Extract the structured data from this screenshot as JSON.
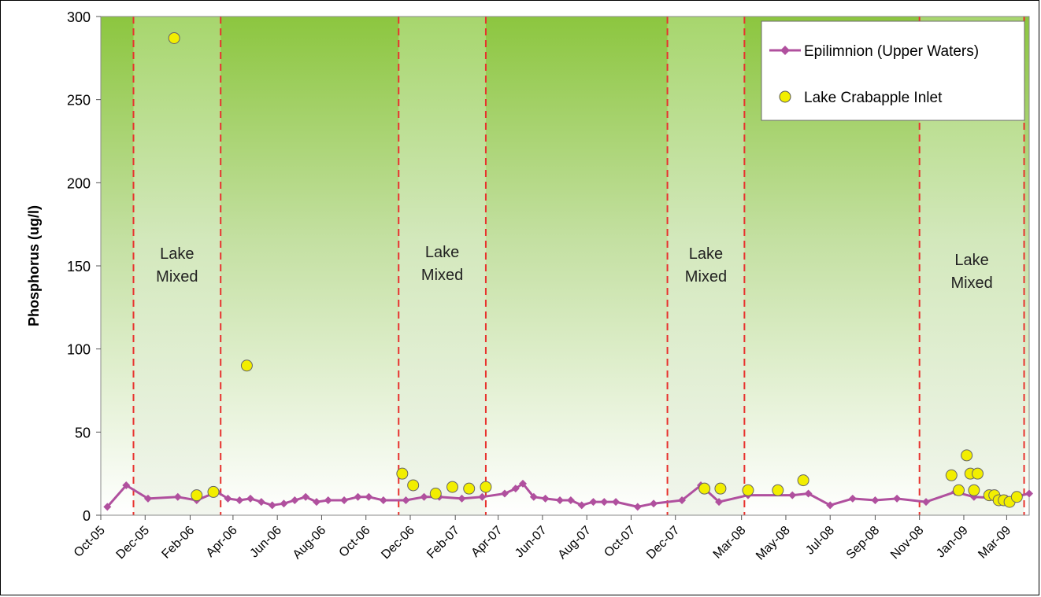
{
  "chart_data": {
    "type": "line",
    "title": "",
    "xlabel": "",
    "ylabel": "Phosphorus (ug/l)",
    "ylim": [
      0,
      300
    ],
    "yticks": [
      0,
      50,
      100,
      150,
      200,
      250,
      300
    ],
    "xlim": [
      "2005-10-01",
      "2009-04-01"
    ],
    "xticks": [
      {
        "date": "2005-10-01",
        "label": "Oct-05"
      },
      {
        "date": "2005-12-01",
        "label": "Dec-05"
      },
      {
        "date": "2006-02-01",
        "label": "Feb-06"
      },
      {
        "date": "2006-04-01",
        "label": "Apr-06"
      },
      {
        "date": "2006-06-01",
        "label": "Jun-06"
      },
      {
        "date": "2006-08-01",
        "label": "Aug-06"
      },
      {
        "date": "2006-10-01",
        "label": "Oct-06"
      },
      {
        "date": "2006-12-01",
        "label": "Dec-06"
      },
      {
        "date": "2007-02-01",
        "label": "Feb-07"
      },
      {
        "date": "2007-04-01",
        "label": "Apr-07"
      },
      {
        "date": "2007-06-01",
        "label": "Jun-07"
      },
      {
        "date": "2007-08-01",
        "label": "Aug-07"
      },
      {
        "date": "2007-10-01",
        "label": "Oct-07"
      },
      {
        "date": "2007-12-01",
        "label": "Dec-07"
      },
      {
        "date": "2008-03-01",
        "label": "Mar-08"
      },
      {
        "date": "2008-05-01",
        "label": "May-08"
      },
      {
        "date": "2008-07-01",
        "label": "Jul-08"
      },
      {
        "date": "2008-09-01",
        "label": "Sep-08"
      },
      {
        "date": "2008-11-01",
        "label": "Nov-08"
      },
      {
        "date": "2009-01-01",
        "label": "Jan-09"
      },
      {
        "date": "2009-03-01",
        "label": "Mar-09"
      }
    ],
    "grid": false,
    "legend_position": "top-right",
    "colors": {
      "epilimnion_line": "#b0509e",
      "inlet_marker_fill": "#f2ee00",
      "mixed_line": "#e8322e",
      "background_green": "#8cc63f"
    },
    "mixed_periods": [
      {
        "start": "2005-11-15",
        "end": "2006-03-15",
        "label": [
          "Lake",
          "Mixed"
        ]
      },
      {
        "start": "2006-11-15",
        "end": "2007-03-15",
        "label": [
          "Lake",
          "Mixed"
        ]
      },
      {
        "start": "2007-11-20",
        "end": "2008-03-05",
        "label": [
          "Lake",
          "Mixed"
        ]
      },
      {
        "start": "2008-11-01",
        "end": "2009-03-25",
        "label": [
          "Lake",
          "Mixed"
        ]
      }
    ],
    "series": [
      {
        "name": "Epilimnion (Upper Waters)",
        "style": "line-diamond",
        "points": [
          [
            "2005-10-10",
            5
          ],
          [
            "2005-11-05",
            18
          ],
          [
            "2005-12-05",
            10
          ],
          [
            "2006-01-15",
            11
          ],
          [
            "2006-02-10",
            9
          ],
          [
            "2006-03-10",
            14
          ],
          [
            "2006-03-25",
            10
          ],
          [
            "2006-04-10",
            9
          ],
          [
            "2006-04-25",
            10
          ],
          [
            "2006-05-10",
            8
          ],
          [
            "2006-05-25",
            6
          ],
          [
            "2006-06-10",
            7
          ],
          [
            "2006-06-25",
            9
          ],
          [
            "2006-07-10",
            11
          ],
          [
            "2006-07-25",
            8
          ],
          [
            "2006-08-10",
            9
          ],
          [
            "2006-09-01",
            9
          ],
          [
            "2006-09-20",
            11
          ],
          [
            "2006-10-05",
            11
          ],
          [
            "2006-10-25",
            9
          ],
          [
            "2006-11-25",
            9
          ],
          [
            "2006-12-20",
            11
          ],
          [
            "2007-01-10",
            11
          ],
          [
            "2007-02-10",
            10
          ],
          [
            "2007-03-10",
            11
          ],
          [
            "2007-04-10",
            13
          ],
          [
            "2007-04-25",
            16
          ],
          [
            "2007-05-05",
            19
          ],
          [
            "2007-05-20",
            11
          ],
          [
            "2007-06-05",
            10
          ],
          [
            "2007-06-25",
            9
          ],
          [
            "2007-07-10",
            9
          ],
          [
            "2007-07-25",
            6
          ],
          [
            "2007-08-10",
            8
          ],
          [
            "2007-08-25",
            8
          ],
          [
            "2007-09-10",
            8
          ],
          [
            "2007-10-10",
            5
          ],
          [
            "2007-11-01",
            7
          ],
          [
            "2007-12-10",
            9
          ],
          [
            "2008-01-05",
            18
          ],
          [
            "2008-01-30",
            8
          ],
          [
            "2008-03-10",
            12
          ],
          [
            "2008-05-10",
            12
          ],
          [
            "2008-06-01",
            13
          ],
          [
            "2008-07-01",
            6
          ],
          [
            "2008-08-01",
            10
          ],
          [
            "2008-09-01",
            9
          ],
          [
            "2008-10-01",
            10
          ],
          [
            "2008-11-10",
            8
          ],
          [
            "2008-12-20",
            14
          ],
          [
            "2009-01-15",
            11
          ],
          [
            "2009-03-01",
            10
          ],
          [
            "2009-04-01",
            13
          ]
        ]
      },
      {
        "name": "Lake Crabapple Inlet",
        "style": "markers-circle",
        "points": [
          [
            "2006-01-10",
            287
          ],
          [
            "2006-02-10",
            12
          ],
          [
            "2006-03-05",
            14
          ],
          [
            "2006-04-20",
            90
          ],
          [
            "2006-11-20",
            25
          ],
          [
            "2006-12-05",
            18
          ],
          [
            "2007-01-05",
            13
          ],
          [
            "2007-01-28",
            17
          ],
          [
            "2007-02-20",
            16
          ],
          [
            "2007-03-15",
            17
          ],
          [
            "2008-01-10",
            16
          ],
          [
            "2008-02-01",
            16
          ],
          [
            "2008-03-10",
            15
          ],
          [
            "2008-04-20",
            15
          ],
          [
            "2008-05-25",
            21
          ],
          [
            "2008-12-15",
            24
          ],
          [
            "2008-12-25",
            15
          ],
          [
            "2009-01-05",
            36
          ],
          [
            "2009-01-10",
            25
          ],
          [
            "2009-01-15",
            15
          ],
          [
            "2009-01-20",
            25
          ],
          [
            "2009-02-05",
            12
          ],
          [
            "2009-02-12",
            12
          ],
          [
            "2009-02-18",
            9
          ],
          [
            "2009-02-25",
            9
          ],
          [
            "2009-03-05",
            8
          ],
          [
            "2009-03-15",
            11
          ]
        ]
      }
    ]
  }
}
